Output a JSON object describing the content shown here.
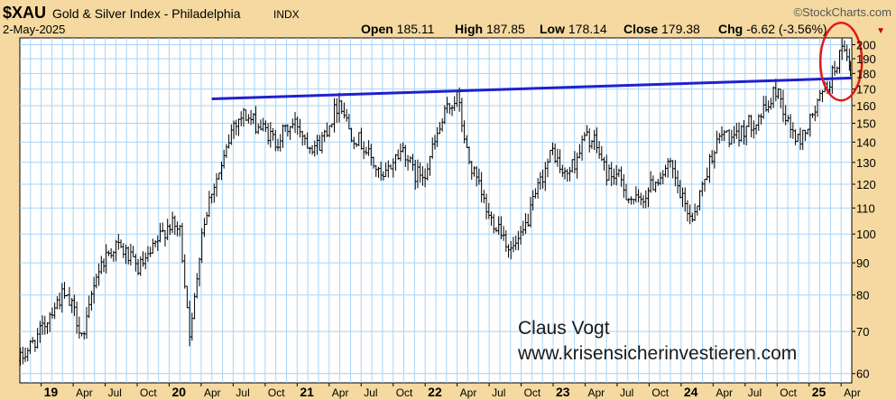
{
  "header": {
    "symbol": "$XAU",
    "name": "Gold & Silver Index - Philadelphia",
    "exchange": "INDX",
    "date": "2-May-2025",
    "brand": "©StockCharts.com",
    "ohlc": [
      {
        "label": "Open",
        "value": "185.11"
      },
      {
        "label": "High",
        "value": "187.85"
      },
      {
        "label": "Low",
        "value": "178.14"
      },
      {
        "label": "Close",
        "value": "179.38"
      },
      {
        "label": "Chg",
        "value": "-6.62 (-3.56%)"
      }
    ],
    "chg_arrow": "▼"
  },
  "annotation": {
    "author": "Claus Vogt",
    "website": "www.krisensicherinvestieren.com"
  },
  "colors": {
    "background": "#f5d9a0",
    "plot_bg": "#ffffff",
    "grid": "#a8d4f5",
    "bars": "#000000",
    "trendline": "#2020d0",
    "circle": "#e01818"
  },
  "chart_data": {
    "type": "ohlc",
    "title": "$XAU Gold & Silver Index - Philadelphia",
    "y_scale": "log",
    "ylim": [
      58,
      205
    ],
    "y_ticks": [
      60,
      70,
      80,
      90,
      100,
      110,
      120,
      130,
      140,
      150,
      160,
      170,
      180,
      190,
      200
    ],
    "y_tick_labels": [
      "60",
      "70",
      "80",
      "90",
      "100",
      "110",
      "120",
      "130",
      "140",
      "150",
      "160",
      "170",
      "180",
      "190",
      "200"
    ],
    "x_ticks": [
      {
        "label": "19",
        "date": "2019-01"
      },
      {
        "label": "Apr",
        "date": "2019-04"
      },
      {
        "label": "Jul",
        "date": "2019-07"
      },
      {
        "label": "Oct",
        "date": "2019-10"
      },
      {
        "label": "20",
        "date": "2020-01"
      },
      {
        "label": "Apr",
        "date": "2020-04"
      },
      {
        "label": "Jul",
        "date": "2020-07"
      },
      {
        "label": "Oct",
        "date": "2020-10"
      },
      {
        "label": "21",
        "date": "2021-01"
      },
      {
        "label": "Apr",
        "date": "2021-04"
      },
      {
        "label": "Jul",
        "date": "2021-07"
      },
      {
        "label": "Oct",
        "date": "2021-10"
      },
      {
        "label": "22",
        "date": "2022-01"
      },
      {
        "label": "Apr",
        "date": "2022-04"
      },
      {
        "label": "Jul",
        "date": "2022-07"
      },
      {
        "label": "Oct",
        "date": "2022-10"
      },
      {
        "label": "23",
        "date": "2023-01"
      },
      {
        "label": "Apr",
        "date": "2023-04"
      },
      {
        "label": "Jul",
        "date": "2023-07"
      },
      {
        "label": "Oct",
        "date": "2023-10"
      },
      {
        "label": "24",
        "date": "2024-01"
      },
      {
        "label": "Apr",
        "date": "2024-04"
      },
      {
        "label": "Jul",
        "date": "2024-07"
      },
      {
        "label": "Oct",
        "date": "2024-10"
      },
      {
        "label": "25",
        "date": "2025-01"
      },
      {
        "label": "Apr",
        "date": "2025-04"
      }
    ],
    "xlim": [
      "2018-11",
      "2025-05"
    ],
    "price_path": [
      [
        "2018-11",
        63
      ],
      [
        "2019-01",
        70
      ],
      [
        "2019-02",
        76
      ],
      [
        "2019-03",
        80
      ],
      [
        "2019-04",
        76
      ],
      [
        "2019-05",
        68
      ],
      [
        "2019-06",
        85
      ],
      [
        "2019-07",
        92
      ],
      [
        "2019-08",
        96
      ],
      [
        "2019-09",
        93
      ],
      [
        "2019-10",
        88
      ],
      [
        "2019-11",
        91
      ],
      [
        "2019-12",
        98
      ],
      [
        "2020-01",
        104
      ],
      [
        "2020-02",
        101
      ],
      [
        "2020-03",
        68
      ],
      [
        "2020-04",
        100
      ],
      [
        "2020-05",
        118
      ],
      [
        "2020-06",
        128
      ],
      [
        "2020-07",
        150
      ],
      [
        "2020-08",
        155
      ],
      [
        "2020-09",
        150
      ],
      [
        "2020-10",
        146
      ],
      [
        "2020-11",
        140
      ],
      [
        "2020-12",
        147
      ],
      [
        "2021-01",
        150
      ],
      [
        "2021-02",
        140
      ],
      [
        "2021-03",
        138
      ],
      [
        "2021-04",
        150
      ],
      [
        "2021-05",
        164
      ],
      [
        "2021-06",
        145
      ],
      [
        "2021-07",
        140
      ],
      [
        "2021-08",
        131
      ],
      [
        "2021-09",
        121
      ],
      [
        "2021-10",
        131
      ],
      [
        "2021-11",
        137
      ],
      [
        "2021-12",
        124
      ],
      [
        "2022-01",
        126
      ],
      [
        "2022-02",
        141
      ],
      [
        "2022-03",
        157
      ],
      [
        "2022-04",
        166
      ],
      [
        "2022-05",
        132
      ],
      [
        "2022-06",
        119
      ],
      [
        "2022-07",
        106
      ],
      [
        "2022-08",
        103
      ],
      [
        "2022-09",
        94
      ],
      [
        "2022-10",
        98
      ],
      [
        "2022-11",
        110
      ],
      [
        "2022-12",
        124
      ],
      [
        "2023-01",
        136
      ],
      [
        "2023-02",
        123
      ],
      [
        "2023-03",
        130
      ],
      [
        "2023-04",
        143
      ],
      [
        "2023-05",
        139
      ],
      [
        "2023-06",
        125
      ],
      [
        "2023-07",
        124
      ],
      [
        "2023-08",
        115
      ],
      [
        "2023-09",
        112
      ],
      [
        "2023-10",
        118
      ],
      [
        "2023-11",
        124
      ],
      [
        "2023-12",
        128
      ],
      [
        "2024-01",
        114
      ],
      [
        "2024-02",
        106
      ],
      [
        "2024-03",
        119
      ],
      [
        "2024-04",
        136
      ],
      [
        "2024-05",
        145
      ],
      [
        "2024-06",
        140
      ],
      [
        "2024-07",
        148
      ],
      [
        "2024-08",
        152
      ],
      [
        "2024-09",
        158
      ],
      [
        "2024-10",
        171
      ],
      [
        "2024-11",
        150
      ],
      [
        "2024-12",
        140
      ],
      [
        "2025-01",
        150
      ],
      [
        "2025-02",
        164
      ],
      [
        "2025-03",
        176
      ],
      [
        "2025-04",
        196
      ],
      [
        "2025-05",
        181
      ]
    ],
    "last_bar": {
      "open": 185.11,
      "high": 187.85,
      "low": 178.14,
      "close": 179.38
    },
    "annotations": [
      {
        "type": "trendline",
        "from": [
          "2020-05",
          164
        ],
        "to": [
          "2025-05",
          177
        ]
      },
      {
        "type": "circle",
        "center": [
          "2025-04",
          188
        ]
      }
    ],
    "grid": true
  }
}
